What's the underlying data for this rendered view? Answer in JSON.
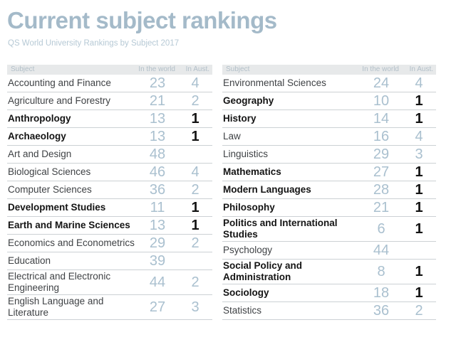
{
  "chart_data": {
    "type": "table",
    "title": "Current subject rankings",
    "subtitle": "QS World University Rankings by Subject 2017",
    "columns": [
      "Subject",
      "In the world",
      "In Aust."
    ],
    "left_table": {
      "rows": [
        {
          "subject": "Accounting and Finance",
          "world": 23,
          "aust": 4,
          "highlight": false
        },
        {
          "subject": "Agriculture and Forestry",
          "world": 21,
          "aust": 2,
          "highlight": false
        },
        {
          "subject": "Anthropology",
          "world": 13,
          "aust": 1,
          "highlight": true
        },
        {
          "subject": "Archaeology",
          "world": 13,
          "aust": 1,
          "highlight": true
        },
        {
          "subject": "Art and Design",
          "world": 48,
          "aust": null,
          "highlight": false
        },
        {
          "subject": "Biological Sciences",
          "world": 46,
          "aust": 4,
          "highlight": false
        },
        {
          "subject": "Computer Sciences",
          "world": 36,
          "aust": 2,
          "highlight": false
        },
        {
          "subject": "Development Studies",
          "world": 11,
          "aust": 1,
          "highlight": true
        },
        {
          "subject": "Earth and Marine Sciences",
          "world": 13,
          "aust": 1,
          "highlight": true
        },
        {
          "subject": "Economics and Econometrics",
          "world": 29,
          "aust": 2,
          "highlight": false
        },
        {
          "subject": "Education",
          "world": 39,
          "aust": null,
          "highlight": false
        },
        {
          "subject": "Electrical and Electronic Engineering",
          "world": 44,
          "aust": 2,
          "highlight": false
        },
        {
          "subject": "English Language and Literature",
          "world": 27,
          "aust": 3,
          "highlight": false
        }
      ]
    },
    "right_table": {
      "rows": [
        {
          "subject": "Environmental Sciences",
          "world": 24,
          "aust": 4,
          "highlight": false
        },
        {
          "subject": "Geography",
          "world": 10,
          "aust": 1,
          "highlight": true
        },
        {
          "subject": "History",
          "world": 14,
          "aust": 1,
          "highlight": true
        },
        {
          "subject": "Law",
          "world": 16,
          "aust": 4,
          "highlight": false
        },
        {
          "subject": "Linguistics",
          "world": 29,
          "aust": 3,
          "highlight": false
        },
        {
          "subject": "Mathematics",
          "world": 27,
          "aust": 1,
          "highlight": true
        },
        {
          "subject": "Modern Languages",
          "world": 28,
          "aust": 1,
          "highlight": true
        },
        {
          "subject": "Philosophy",
          "world": 21,
          "aust": 1,
          "highlight": true
        },
        {
          "subject": "Politics and International Studies",
          "world": 6,
          "aust": 1,
          "highlight": true
        },
        {
          "subject": "Psychology",
          "world": 44,
          "aust": null,
          "highlight": false
        },
        {
          "subject": "Social Policy and Administration",
          "world": 8,
          "aust": 1,
          "highlight": true
        },
        {
          "subject": "Sociology",
          "world": 18,
          "aust": 1,
          "highlight": true
        },
        {
          "subject": "Statistics",
          "world": 36,
          "aust": 2,
          "highlight": false
        }
      ]
    },
    "layout_hints": {
      "highlight_meaning": "Subjects ranked 1 in Australia are shown in bold black",
      "grid": "horizontal row dividers only",
      "two_column_layout": true
    }
  },
  "colors": {
    "title_text": "#a4bac9",
    "subtitle_text": "#b6c9d5",
    "header_bg": "#e7e9ea",
    "header_text": "#b2bfc8",
    "rank_number": "#aac0cf",
    "subject_text": "#3f4245",
    "highlight_text": "#141414",
    "divider": "#ccd1d4"
  }
}
